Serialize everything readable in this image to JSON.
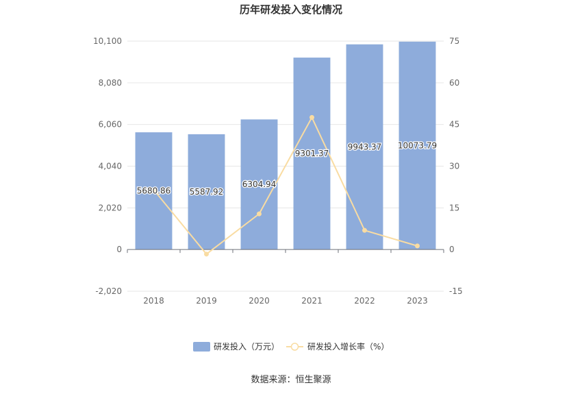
{
  "chart_data": {
    "type": "bar",
    "title": "历年研发投入变化情况",
    "categories": [
      "2018",
      "2019",
      "2020",
      "2021",
      "2022",
      "2023"
    ],
    "series": [
      {
        "name": "研发投入（万元）",
        "type": "bar",
        "axis": "left",
        "values": [
          5680.86,
          5587.92,
          6304.94,
          9301.37,
          9943.37,
          10073.79
        ],
        "labels": [
          "5680.86",
          "5587.92",
          "6304.94",
          "9301.37",
          "9943.37",
          "10073.79"
        ],
        "color": "#8eacdb"
      },
      {
        "name": "研发投入增长率（%）",
        "type": "line",
        "axis": "right",
        "values": [
          21.5,
          -1.64,
          12.83,
          47.53,
          6.9,
          1.31
        ],
        "color": "#f9dca2"
      }
    ],
    "y_left": {
      "ylim": [
        -2020,
        10100
      ],
      "ticks": [
        -2020,
        0,
        2020,
        4040,
        6060,
        8080,
        10100
      ],
      "tick_labels": [
        "-2,020",
        "0",
        "2,020",
        "4,040",
        "6,060",
        "8,080",
        "10,100"
      ]
    },
    "y_right": {
      "ylim": [
        -15,
        75
      ],
      "ticks": [
        -15,
        0,
        15,
        30,
        45,
        60,
        75
      ],
      "tick_labels": [
        "-15",
        "0",
        "15",
        "30",
        "45",
        "60",
        "75"
      ]
    },
    "grid": true,
    "legend_position": "bottom-center"
  },
  "source": "数据来源：恒生聚源"
}
